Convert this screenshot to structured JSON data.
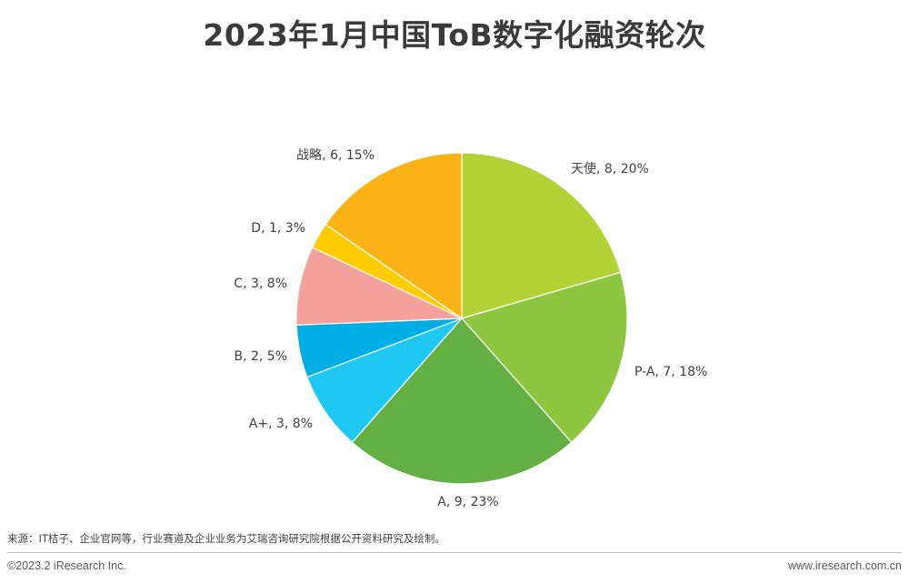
{
  "page": {
    "title": "2023年1月中国ToB数字化融资轮次",
    "source": "来源：IT桔子、企业官网等，行业赛道及企业业务为艾瑞咨询研究院根据公开资料研究及绘制。",
    "copyright": "©2023.2 iResearch Inc.",
    "website": "www.iresearch.com.cn"
  },
  "chart_data": {
    "type": "pie",
    "title": "2023年1月中国ToB数字化融资轮次",
    "slices": [
      {
        "name": "天使",
        "value": 8,
        "percent": "20%",
        "label": "天使, 8, 20%",
        "color": "#b2d235"
      },
      {
        "name": "P-A",
        "value": 7,
        "percent": "18%",
        "label": "P-A, 7, 18%",
        "color": "#8dc63f"
      },
      {
        "name": "A",
        "value": 9,
        "percent": "23%",
        "label": "A, 9, 23%",
        "color": "#65b045"
      },
      {
        "name": "A+",
        "value": 3,
        "percent": "8%",
        "label": "A+, 3, 8%",
        "color": "#1fc8f3"
      },
      {
        "name": "B",
        "value": 2,
        "percent": "5%",
        "label": "B, 2, 5%",
        "color": "#00aee6"
      },
      {
        "name": "C",
        "value": 3,
        "percent": "8%",
        "label": "C, 3, 8%",
        "color": "#f4a09c"
      },
      {
        "name": "D",
        "value": 1,
        "percent": "3%",
        "label": "D, 1, 3%",
        "color": "#ffcc00"
      },
      {
        "name": "战略",
        "value": 6,
        "percent": "15%",
        "label": "战略, 6, 15%",
        "color": "#fbb316"
      }
    ],
    "start_position": "12 o'clock",
    "direction": "clockwise",
    "legend": "none"
  }
}
